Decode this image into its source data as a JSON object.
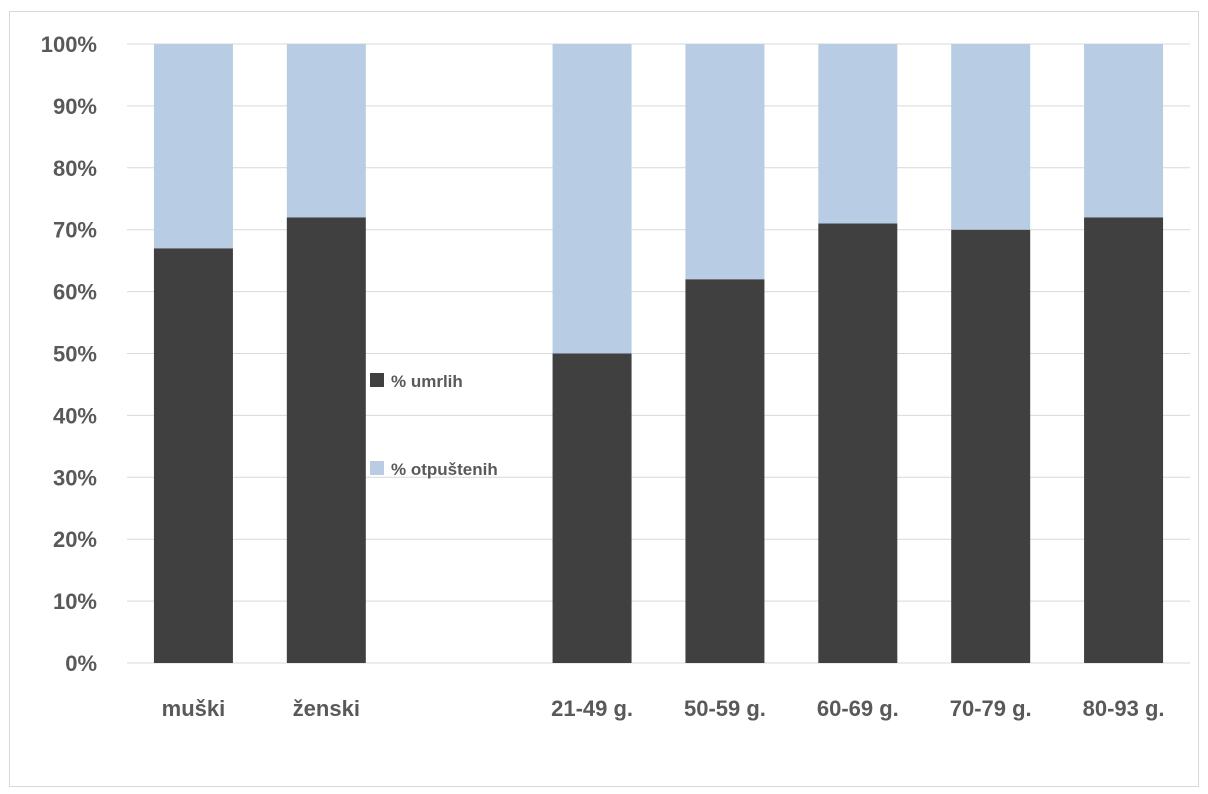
{
  "chart_data": {
    "type": "bar",
    "stacked": true,
    "percent_stacked": true,
    "categories": [
      "muški",
      "ženski",
      "",
      "21-49 g.",
      "50-59 g.",
      "60-69 g.",
      "70-79 g.",
      "80-93 g."
    ],
    "series": [
      {
        "name": "% umrlih",
        "color": "#404040",
        "values": [
          67,
          72,
          null,
          50,
          62,
          71,
          70,
          72
        ]
      },
      {
        "name": "% otpuštenih",
        "color": "#b8cce4",
        "values": [
          33,
          28,
          null,
          50,
          38,
          29,
          30,
          28
        ]
      }
    ],
    "y_ticks": [
      "0%",
      "10%",
      "20%",
      "30%",
      "40%",
      "50%",
      "60%",
      "70%",
      "80%",
      "90%",
      "100%"
    ],
    "ylim": [
      0,
      100
    ],
    "grid": true,
    "legend_position": "center"
  }
}
